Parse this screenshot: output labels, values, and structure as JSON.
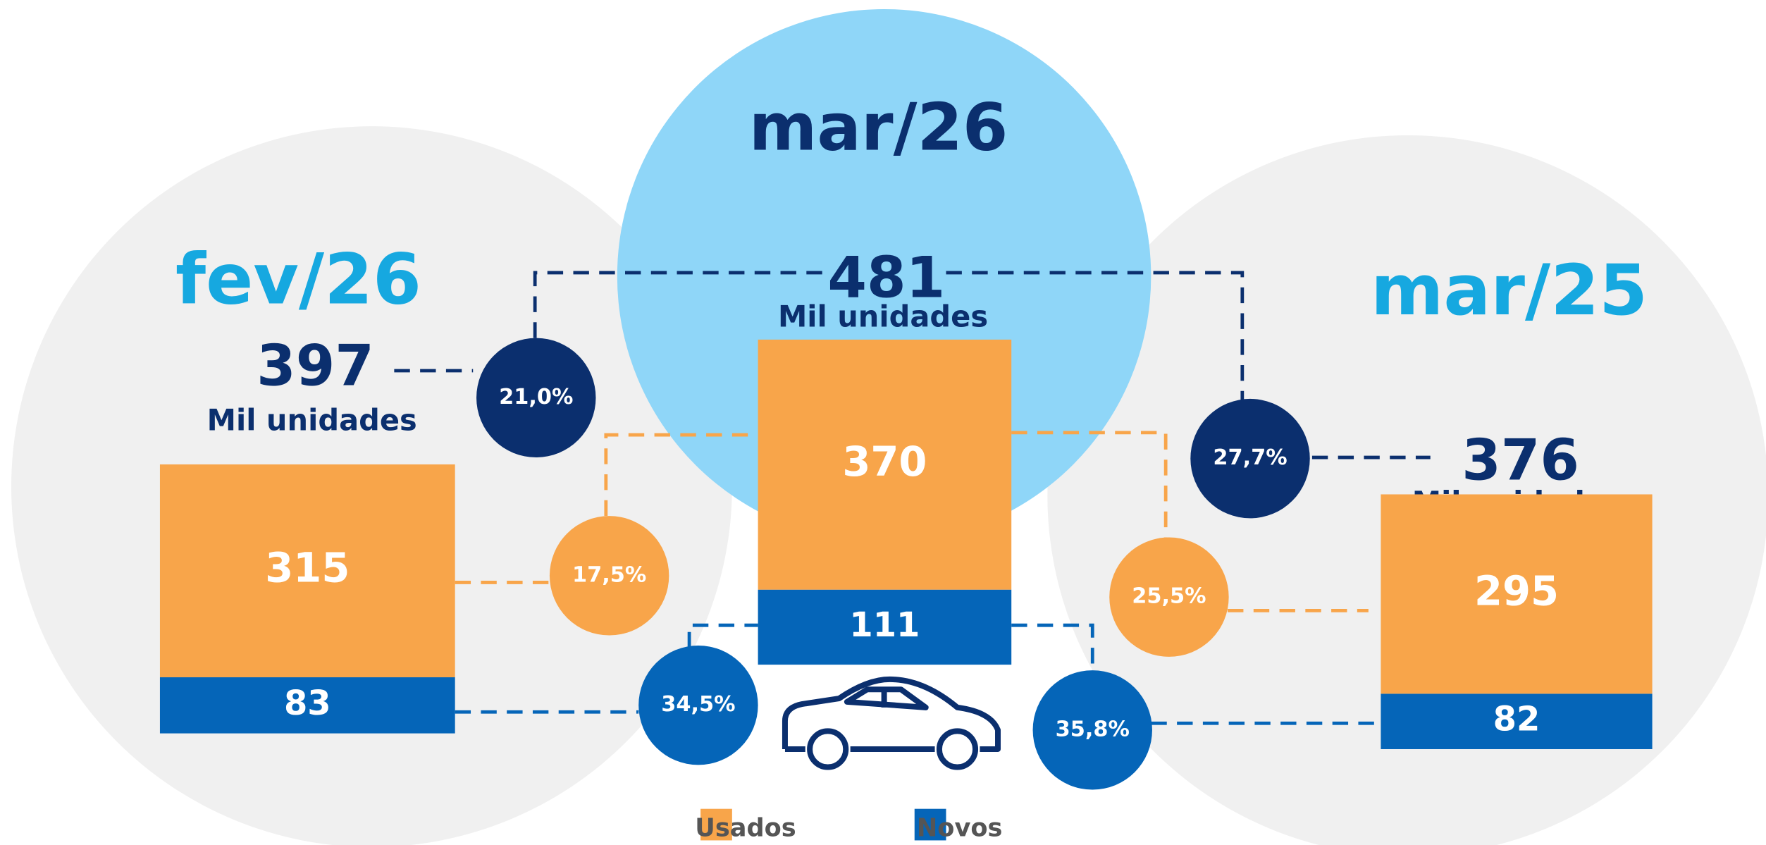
{
  "chart_data": {
    "type": "bar",
    "stacked": true,
    "categories": [
      "fev/26",
      "mar/26",
      "mar/25"
    ],
    "series": [
      {
        "name": "Usados",
        "color": "#f8a54a",
        "values": [
          315,
          370,
          295
        ]
      },
      {
        "name": "Novos",
        "color": "#0565b8",
        "values": [
          83,
          111,
          82
        ]
      }
    ],
    "totals": [
      397,
      481,
      376
    ],
    "unit": "Mil unidades",
    "variations": {
      "total": {
        "color": "#0b2f6e",
        "values": [
          21.0,
          27.7
        ],
        "value_labels": [
          "21,0%",
          "27,7%"
        ]
      },
      "usados": {
        "color": "#f8a54a",
        "values": [
          17.5,
          25.5
        ],
        "value_labels": [
          "17,5%",
          "25,5%"
        ]
      },
      "novos": {
        "color": "#0565b8",
        "values": [
          34.5,
          35.8
        ],
        "value_labels": [
          "34,5%",
          "35,8%"
        ]
      }
    }
  }
}
